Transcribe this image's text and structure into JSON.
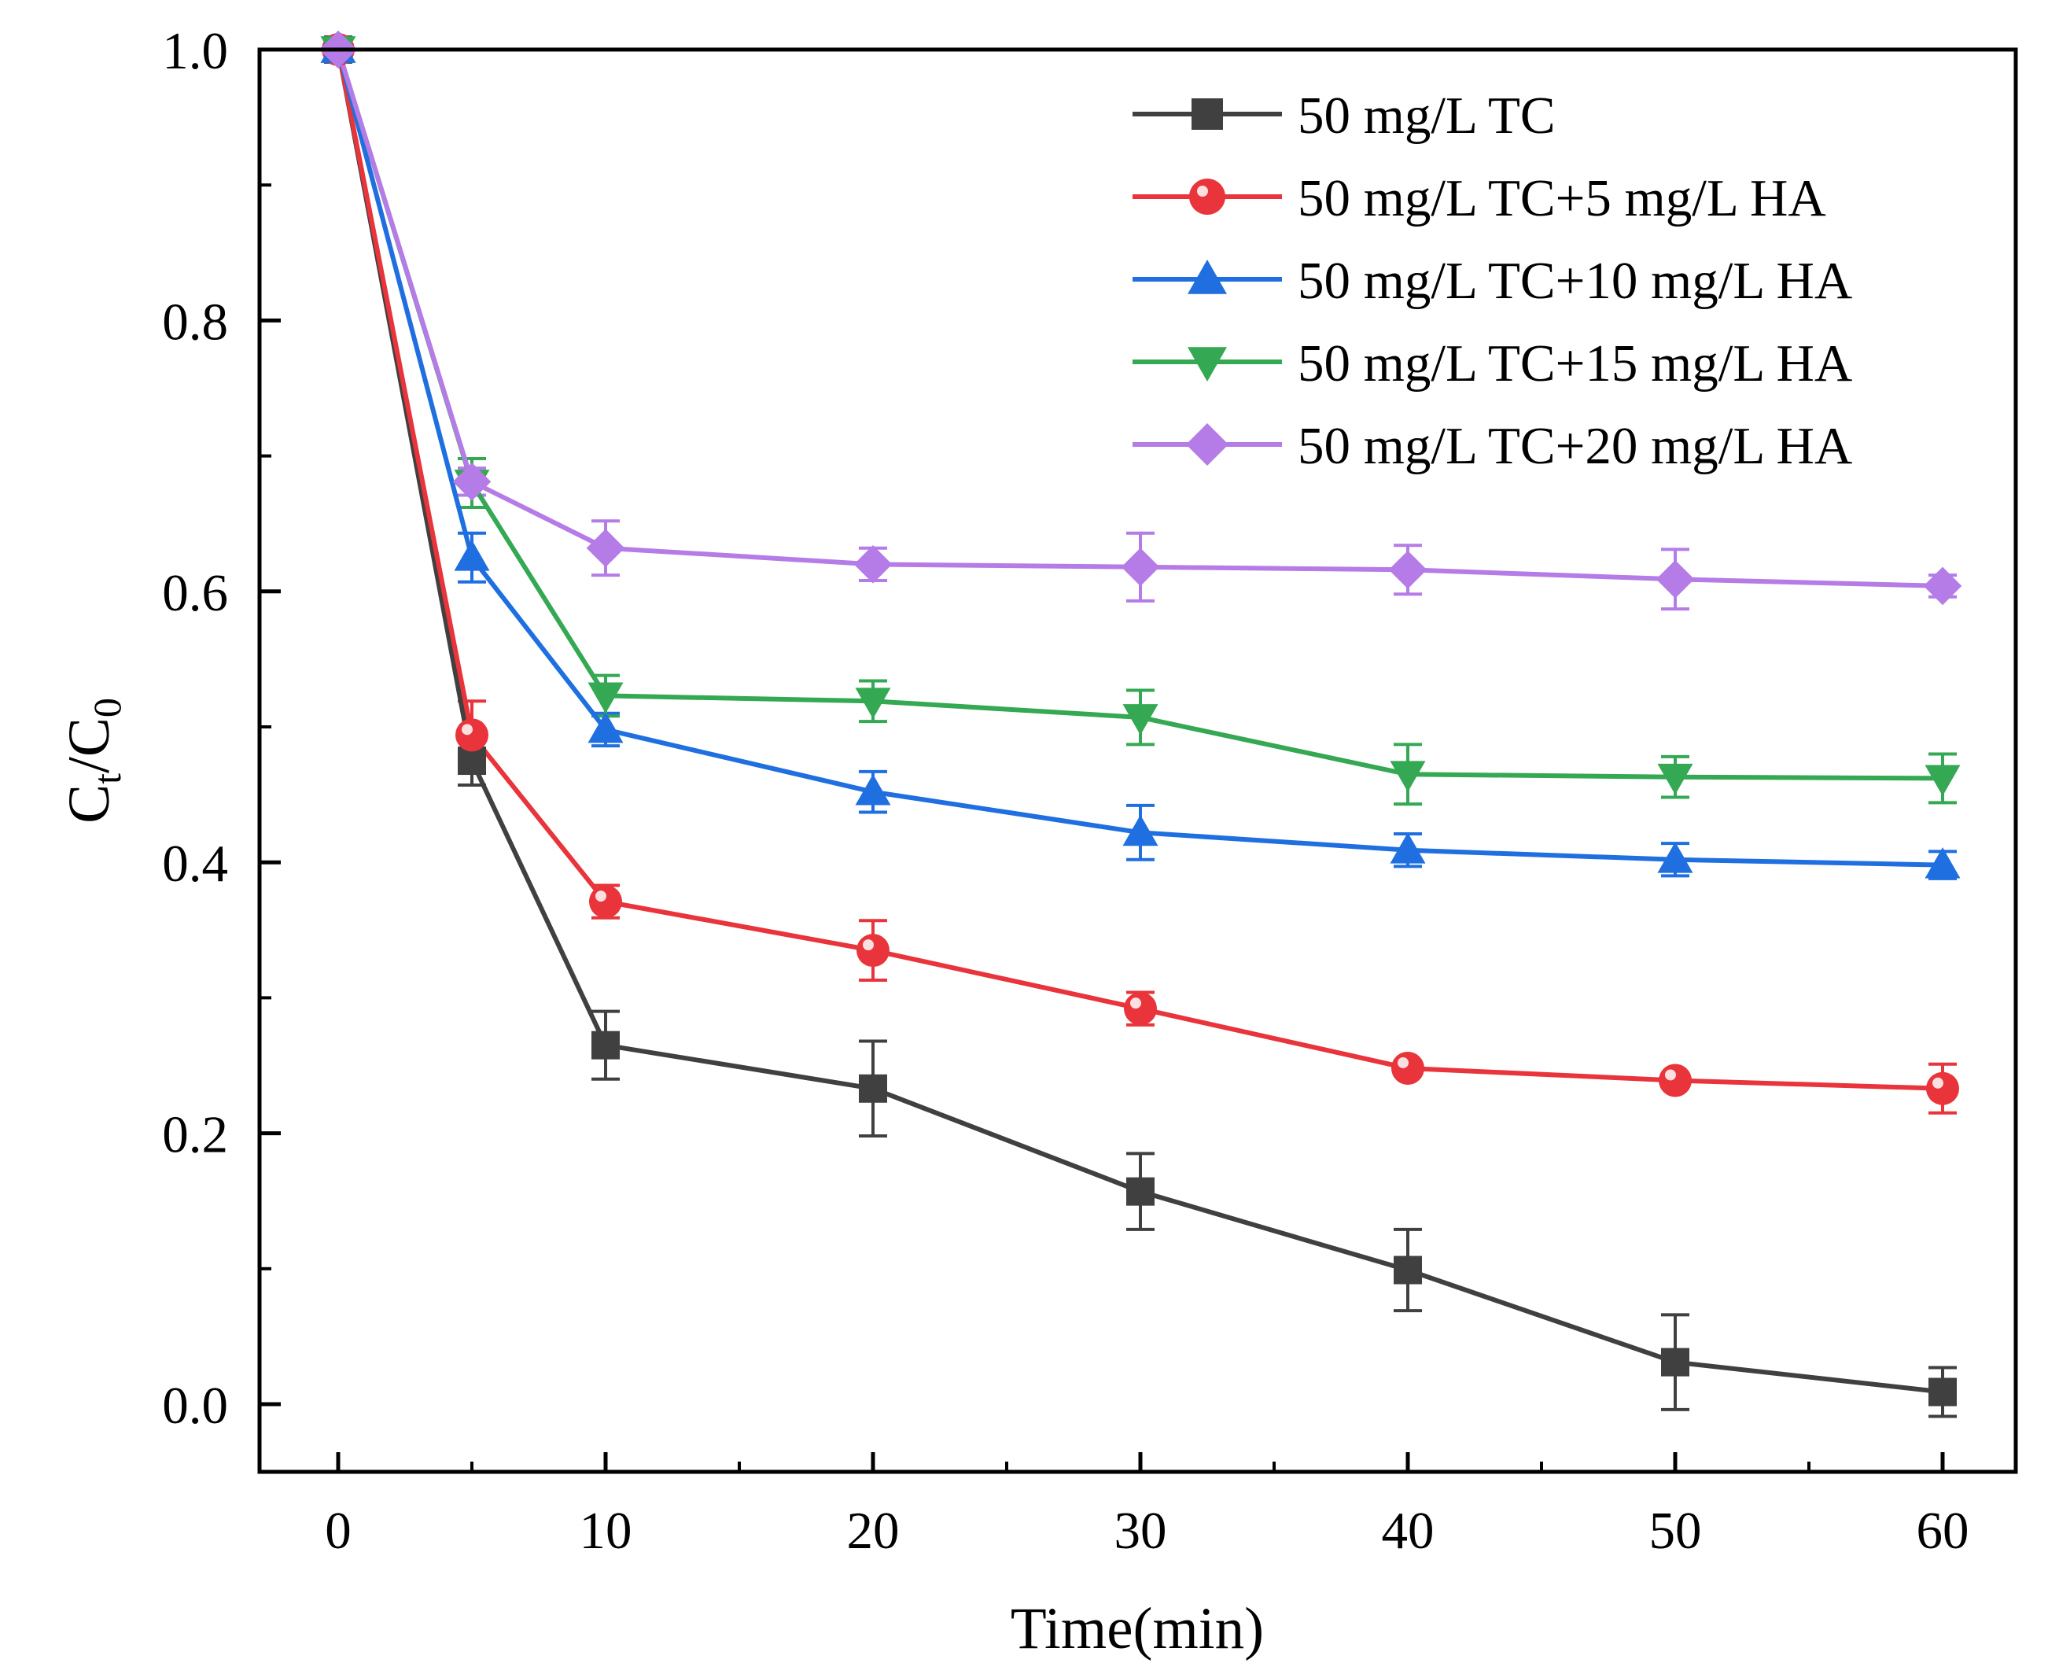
{
  "chart_data": {
    "type": "line",
    "title": "",
    "xlabel": "Time(min)",
    "ylabel": {
      "main": "C",
      "sub1": "t",
      "slash": "/",
      "main2": "C",
      "sub2": "0"
    },
    "xlim": [
      -3,
      63
    ],
    "ylim": [
      -0.1,
      1.0
    ],
    "xticks": [
      0,
      10,
      20,
      30,
      40,
      50,
      60
    ],
    "xtick_labels": [
      "0",
      "10",
      "20",
      "30",
      "40",
      "50",
      "60"
    ],
    "yticks": [
      0.0,
      0.2,
      0.4,
      0.6,
      0.8,
      1.0
    ],
    "ytick_labels": [
      "0.0",
      "0.2",
      "0.4",
      "0.6",
      "0.8",
      "1.0"
    ],
    "grid": false,
    "legend_position": "top-right",
    "x": [
      0,
      5,
      10,
      20,
      30,
      40,
      50,
      60
    ],
    "series": [
      {
        "name": "50 mg/L TC",
        "color": "#404040",
        "marker": "square",
        "values": [
          1.0,
          0.475,
          0.265,
          0.233,
          0.157,
          0.099,
          0.031,
          0.009
        ],
        "errors": [
          0.005,
          0.018,
          0.025,
          0.035,
          0.028,
          0.03,
          0.035,
          0.018
        ]
      },
      {
        "name": "50 mg/L TC+5 mg/L HA",
        "color": "#e8343a",
        "marker": "circle",
        "values": [
          1.0,
          0.494,
          0.371,
          0.335,
          0.292,
          0.248,
          0.239,
          0.233
        ],
        "errors": [
          0.005,
          0.025,
          0.012,
          0.022,
          0.012,
          0.005,
          0.005,
          0.018
        ]
      },
      {
        "name": "50 mg/L TC+10 mg/L HA",
        "color": "#1f6fe0",
        "marker": "triangle-up",
        "values": [
          1.0,
          0.625,
          0.498,
          0.452,
          0.422,
          0.409,
          0.402,
          0.398
        ],
        "errors": [
          0.005,
          0.018,
          0.012,
          0.015,
          0.02,
          0.012,
          0.012,
          0.01
        ]
      },
      {
        "name": "50 mg/L TC+15 mg/L HA",
        "color": "#34a853",
        "marker": "triangle-down",
        "values": [
          1.0,
          0.68,
          0.523,
          0.519,
          0.507,
          0.465,
          0.463,
          0.462
        ],
        "errors": [
          0.005,
          0.018,
          0.015,
          0.015,
          0.02,
          0.022,
          0.015,
          0.018
        ]
      },
      {
        "name": "50 mg/L TC+20 mg/L HA",
        "color": "#b57be6",
        "marker": "diamond",
        "values": [
          1.0,
          0.681,
          0.632,
          0.62,
          0.618,
          0.616,
          0.609,
          0.604
        ],
        "errors": [
          0.005,
          0.01,
          0.02,
          0.012,
          0.025,
          0.018,
          0.022,
          0.008
        ]
      }
    ]
  }
}
